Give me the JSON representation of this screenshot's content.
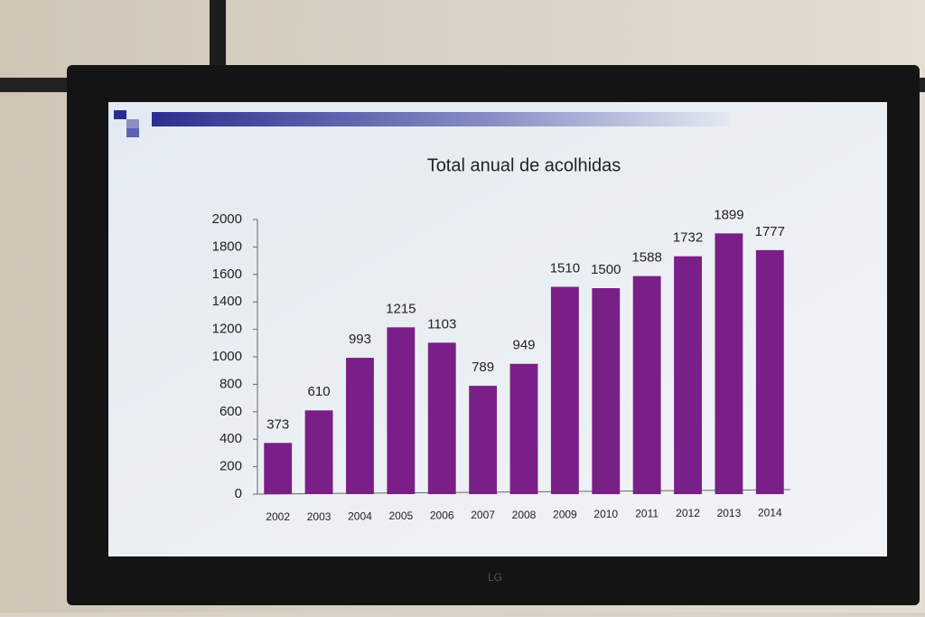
{
  "brand": "LG",
  "chart_data": {
    "type": "bar",
    "title": "Total anual de acolhidas",
    "categories": [
      "2002",
      "2003",
      "2004",
      "2005",
      "2006",
      "2007",
      "2008",
      "2009",
      "2010",
      "2011",
      "2012",
      "2013",
      "2014"
    ],
    "values": [
      373,
      610,
      993,
      1215,
      1103,
      789,
      949,
      1510,
      1500,
      1588,
      1732,
      1899,
      1777
    ],
    "color": "#7a1f88",
    "ylim": [
      0,
      2000
    ],
    "yticks": [
      0,
      200,
      400,
      600,
      800,
      1000,
      1200,
      1400,
      1600,
      1800,
      2000
    ],
    "grid": false
  }
}
